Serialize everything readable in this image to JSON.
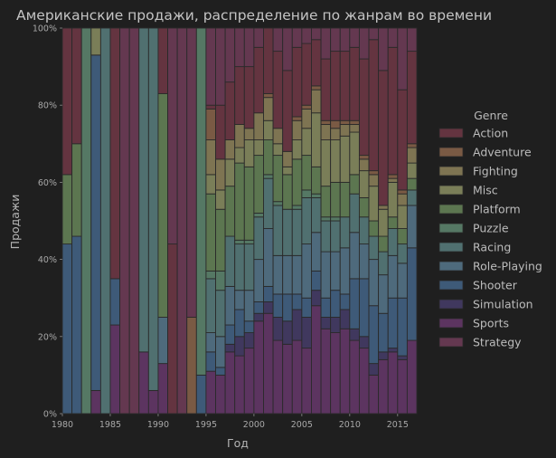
{
  "chart_data": {
    "type": "bar",
    "stacked": "percent",
    "title": "Американские продажи, распределение по жанрам во времени",
    "xlabel": "Год",
    "ylabel": "Продажи",
    "xlim": [
      1980,
      2016
    ],
    "ylim": [
      0,
      100
    ],
    "x_ticks": [
      1980,
      1985,
      1990,
      1995,
      2000,
      2005,
      2010,
      2015
    ],
    "x_tick_labels": [
      "1980",
      "1985",
      "1990",
      "1995",
      "2000",
      "2005",
      "2010",
      "2015"
    ],
    "y_ticks": [
      0,
      20,
      40,
      60,
      80,
      100
    ],
    "y_tick_labels": [
      "0%",
      "20%",
      "40%",
      "60%",
      "80%",
      "100%"
    ],
    "grid": false,
    "legend": {
      "title": "Genre",
      "placement": "right",
      "entries": [
        "Action",
        "Adventure",
        "Fighting",
        "Misc",
        "Platform",
        "Puzzle",
        "Racing",
        "Role-Playing",
        "Shooter",
        "Simulation",
        "Sports",
        "Strategy"
      ]
    },
    "colors": [
      "#643440",
      "#7a5a44",
      "#7e7452",
      "#7a7e58",
      "#5c7650",
      "#557864",
      "#507070",
      "#4e6a7c",
      "#3e5a78",
      "#40385e",
      "#5c3460",
      "#643850"
    ],
    "stack_order": [
      "Sports",
      "Simulation",
      "Shooter",
      "Role-Playing",
      "Racing",
      "Puzzle",
      "Platform",
      "Misc",
      "Fighting",
      "Adventure",
      "Action",
      "Strategy"
    ],
    "x": [
      1980,
      1981,
      1982,
      1983,
      1984,
      1985,
      1986,
      1987,
      1988,
      1989,
      1990,
      1991,
      1992,
      1993,
      1994,
      1995,
      1996,
      1997,
      1998,
      1999,
      2000,
      2001,
      2002,
      2003,
      2004,
      2005,
      2006,
      2007,
      2008,
      2009,
      2010,
      2011,
      2012,
      2013,
      2014,
      2015,
      2016
    ],
    "series": [
      {
        "name": "Action",
        "values": [
          38,
          30,
          0,
          0,
          0,
          65,
          0,
          0,
          0,
          0,
          17,
          44,
          0,
          0,
          0,
          1,
          14,
          15,
          15,
          16,
          17,
          17,
          20,
          21,
          18,
          16,
          12,
          16,
          18,
          18,
          19,
          25,
          34,
          35,
          33,
          26,
          24
        ]
      },
      {
        "name": "Adventure",
        "values": [
          0,
          0,
          0,
          0,
          0,
          0,
          0,
          0,
          0,
          0,
          0,
          0,
          0,
          25,
          0,
          8,
          0,
          0,
          0,
          0,
          0,
          1,
          0,
          0,
          1,
          1,
          1,
          1,
          2,
          1,
          1,
          1,
          1,
          0,
          1,
          1,
          1
        ]
      },
      {
        "name": "Fighting",
        "values": [
          0,
          0,
          0,
          0,
          0,
          0,
          0,
          0,
          0,
          0,
          0,
          0,
          0,
          0,
          0,
          9,
          8,
          5,
          6,
          3,
          7,
          6,
          4,
          4,
          5,
          5,
          6,
          4,
          3,
          3,
          2,
          3,
          3,
          1,
          1,
          3,
          4
        ]
      },
      {
        "name": "Misc",
        "values": [
          0,
          0,
          0,
          7,
          0,
          0,
          0,
          0,
          0,
          0,
          0,
          0,
          0,
          0,
          0,
          5,
          5,
          7,
          4,
          7,
          4,
          5,
          3,
          2,
          5,
          7,
          14,
          12,
          11,
          12,
          11,
          7,
          9,
          7,
          9,
          6,
          4
        ]
      },
      {
        "name": "Platform",
        "values": [
          18,
          24,
          0,
          0,
          0,
          0,
          0,
          0,
          0,
          0,
          58,
          0,
          0,
          0,
          0,
          20,
          16,
          13,
          20,
          19,
          15,
          9,
          12,
          9,
          12,
          9,
          7,
          8,
          9,
          9,
          5,
          5,
          4,
          4,
          3,
          4,
          3
        ]
      },
      {
        "name": "Puzzle",
        "values": [
          0,
          0,
          100,
          0,
          0,
          0,
          0,
          0,
          0,
          0,
          0,
          0,
          0,
          0,
          90,
          2,
          5,
          0,
          1,
          1,
          1,
          1,
          1,
          0,
          1,
          2,
          1,
          1,
          1,
          0,
          0,
          0,
          0,
          0,
          0,
          0,
          0
        ]
      },
      {
        "name": "Racing",
        "values": [
          0,
          0,
          0,
          0,
          100,
          0,
          0,
          0,
          84,
          94,
          0,
          0,
          0,
          0,
          0,
          14,
          12,
          13,
          12,
          12,
          11,
          13,
          13,
          12,
          12,
          12,
          9,
          8,
          8,
          8,
          10,
          7,
          6,
          6,
          7,
          5,
          4
        ]
      },
      {
        "name": "Role-Playing",
        "values": [
          0,
          0,
          0,
          0,
          0,
          0,
          0,
          0,
          0,
          0,
          12,
          0,
          0,
          0,
          0,
          5,
          8,
          10,
          5,
          8,
          11,
          15,
          10,
          10,
          10,
          14,
          10,
          12,
          10,
          12,
          12,
          9,
          12,
          10,
          11,
          9,
          11
        ]
      },
      {
        "name": "Shooter",
        "values": [
          44,
          46,
          0,
          87,
          0,
          12,
          0,
          0,
          0,
          0,
          0,
          0,
          0,
          0,
          10,
          5,
          2,
          5,
          7,
          3,
          3,
          4,
          6,
          7,
          4,
          5,
          5,
          5,
          7,
          4,
          13,
          15,
          15,
          10,
          13,
          15,
          24
        ]
      },
      {
        "name": "Simulation",
        "values": [
          0,
          0,
          0,
          0,
          0,
          0,
          0,
          0,
          0,
          0,
          0,
          0,
          0,
          0,
          0,
          0,
          0,
          2,
          5,
          4,
          2,
          3,
          6,
          6,
          8,
          8,
          4,
          3,
          4,
          5,
          3,
          3,
          3,
          2,
          1,
          1,
          0
        ]
      },
      {
        "name": "Sports",
        "values": [
          0,
          0,
          0,
          6,
          0,
          23,
          0,
          0,
          16,
          6,
          13,
          0,
          0,
          0,
          0,
          11,
          10,
          16,
          15,
          17,
          24,
          26,
          19,
          18,
          19,
          17,
          28,
          22,
          21,
          22,
          19,
          17,
          10,
          14,
          16,
          14,
          19
        ]
      },
      {
        "name": "Strategy",
        "values": [
          0,
          0,
          0,
          0,
          0,
          0,
          100,
          100,
          0,
          0,
          0,
          56,
          100,
          75,
          0,
          20,
          20,
          14,
          10,
          10,
          5,
          0,
          6,
          11,
          5,
          4,
          3,
          8,
          6,
          6,
          5,
          8,
          3,
          11,
          5,
          16,
          6
        ]
      }
    ]
  }
}
